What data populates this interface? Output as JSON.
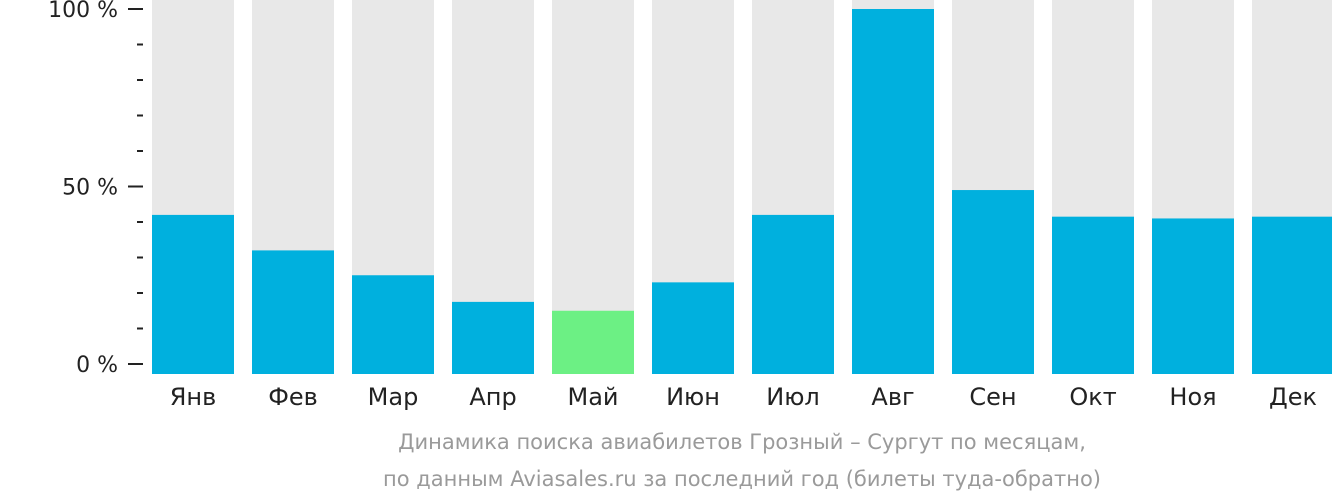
{
  "chart_data": {
    "type": "bar",
    "categories": [
      "Янв",
      "Фев",
      "Мар",
      "Апр",
      "Май",
      "Июн",
      "Июл",
      "Авг",
      "Сен",
      "Окт",
      "Ноя",
      "Дек"
    ],
    "values": [
      42,
      32,
      25,
      17.5,
      15,
      23,
      42,
      100,
      49,
      41.5,
      41,
      41.5
    ],
    "ylim": [
      0,
      100
    ],
    "y_tick_labels": [
      "0 %",
      "50 %",
      "100 %"
    ],
    "y_tick_values": [
      0,
      50,
      100
    ],
    "minor_ticks_per_major": 5,
    "highlight_category": "Май",
    "colors": {
      "bar": "#00b0de",
      "highlight": "#6cf084",
      "track": "#e8e8e8",
      "axis": "#222222"
    }
  },
  "caption": {
    "line1": "Динамика поиска авиабилетов Грозный – Сургут по месяцам,",
    "line2": "по данным Aviasales.ru за последний год (билеты туда-обратно)"
  }
}
